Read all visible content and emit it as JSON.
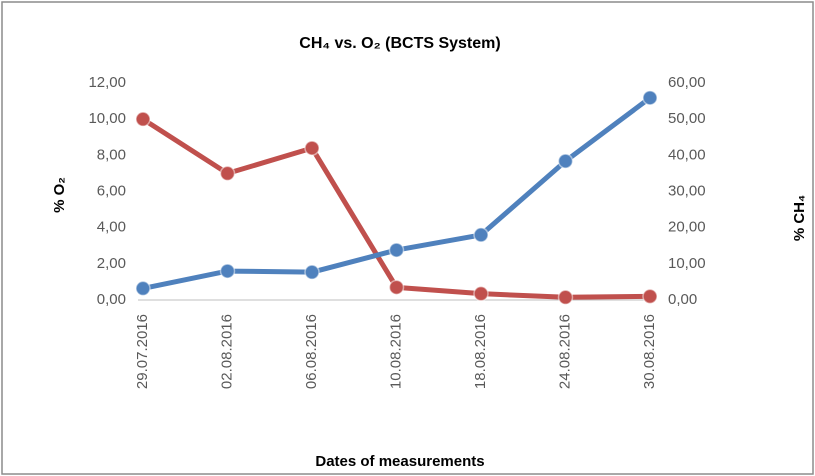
{
  "chart_data": {
    "type": "line",
    "title": "CH₄ vs. O₂ (BCTS System)",
    "xlabel": "Dates of measurements",
    "ylabel": "% O₂",
    "y2label": "% CH₄",
    "categories": [
      "29.07.2016",
      "02.08.2016",
      "06.08.2016",
      "10.08.2016",
      "18.08.2016",
      "24.08.2016",
      "30.08.2016"
    ],
    "series": [
      {
        "color": "#c0504d",
        "axis": "y",
        "values": [
          10.0,
          7.0,
          8.4,
          0.7,
          0.35,
          0.15,
          0.2
        ]
      },
      {
        "color": "#4f81bd",
        "axis": "y2",
        "values": [
          3.2,
          8.0,
          7.7,
          13.8,
          18.0,
          38.4,
          55.9
        ]
      }
    ],
    "ylim": [
      0,
      12
    ],
    "yticks": [
      {
        "value": 0,
        "label": "0,00"
      },
      {
        "value": 2,
        "label": "2,00"
      },
      {
        "value": 4,
        "label": "4,00"
      },
      {
        "value": 6,
        "label": "6,00"
      },
      {
        "value": 8,
        "label": "8,00"
      },
      {
        "value": 10,
        "label": "10,00"
      },
      {
        "value": 12,
        "label": "12,00"
      }
    ],
    "y2lim": [
      0,
      60
    ],
    "y2ticks": [
      {
        "value": 0,
        "label": "0,00"
      },
      {
        "value": 10,
        "label": "10,00"
      },
      {
        "value": 20,
        "label": "20,00"
      },
      {
        "value": 30,
        "label": "30,00"
      },
      {
        "value": 40,
        "label": "40,00"
      },
      {
        "value": 50,
        "label": "50,00"
      },
      {
        "value": 60,
        "label": "60,00"
      }
    ],
    "grid": false
  }
}
